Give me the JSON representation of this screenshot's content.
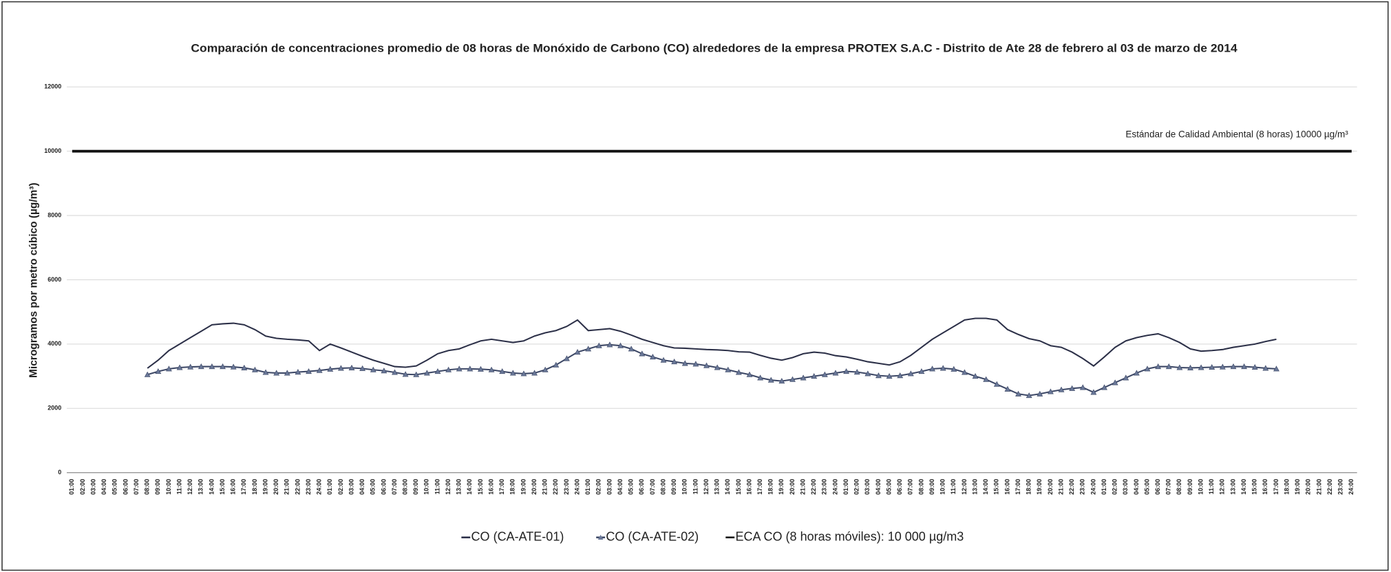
{
  "chart_data": {
    "type": "line",
    "title": "Comparación de concentraciones promedio  de 08 horas de  Monóxido de  Carbono (CO) alrededores de la empresa PROTEX S.A.C -  Distrito de Ate   28 de febrero al 03 de marzo de 2014",
    "y_label": "Microgramos por metro cúbico (µg/m³)",
    "annotation": "Estándar de Calidad  Ambiental (8 horas) 10000 µg/m³",
    "categories": [
      "01:00",
      "02:00",
      "03:00",
      "04:00",
      "05:00",
      "06:00",
      "07:00",
      "08:00",
      "09:00",
      "10:00",
      "11:00",
      "12:00",
      "13:00",
      "14:00",
      "15:00",
      "16:00",
      "17:00",
      "18:00",
      "19:00",
      "20:00",
      "21:00",
      "22:00",
      "23:00",
      "24:00",
      "01:00",
      "02:00",
      "03:00",
      "04:00",
      "05:00",
      "06:00",
      "07:00",
      "08:00",
      "09:00",
      "10:00",
      "11:00",
      "12:00",
      "13:00",
      "14:00",
      "15:00",
      "16:00",
      "17:00",
      "18:00",
      "19:00",
      "20:00",
      "21:00",
      "22:00",
      "23:00",
      "24:00",
      "01:00",
      "02:00",
      "03:00",
      "04:00",
      "05:00",
      "06:00",
      "07:00",
      "08:00",
      "09:00",
      "10:00",
      "11:00",
      "12:00",
      "13:00",
      "14:00",
      "15:00",
      "16:00",
      "17:00",
      "18:00",
      "19:00",
      "20:00",
      "21:00",
      "22:00",
      "23:00",
      "24:00",
      "01:00",
      "02:00",
      "03:00",
      "04:00",
      "05:00",
      "06:00",
      "07:00",
      "08:00",
      "09:00",
      "10:00",
      "11:00",
      "12:00",
      "13:00",
      "14:00",
      "15:00",
      "16:00",
      "17:00",
      "18:00",
      "19:00",
      "20:00",
      "21:00",
      "22:00",
      "23:00",
      "24:00",
      "01:00",
      "02:00",
      "03:00",
      "04:00",
      "05:00",
      "06:00",
      "07:00",
      "08:00",
      "09:00",
      "10:00",
      "11:00",
      "12:00",
      "13:00",
      "14:00",
      "15:00",
      "16:00",
      "17:00",
      "18:00",
      "19:00",
      "20:00",
      "21:00",
      "22:00",
      "23:00",
      "24:00"
    ],
    "series": [
      {
        "name": "CO (CA-ATE-01)",
        "color": "#2c3048",
        "marker": "none",
        "values": [
          null,
          null,
          null,
          null,
          null,
          null,
          null,
          3250,
          3500,
          3800,
          4000,
          4200,
          4400,
          4600,
          4630,
          4650,
          4600,
          4450,
          4250,
          4180,
          4150,
          4130,
          4100,
          3800,
          4000,
          3880,
          3750,
          3620,
          3500,
          3400,
          3300,
          3280,
          3320,
          3500,
          3700,
          3800,
          3850,
          3980,
          4100,
          4150,
          4100,
          4050,
          4100,
          4250,
          4350,
          4420,
          4550,
          4750,
          4420,
          4450,
          4480,
          4400,
          4280,
          4150,
          4050,
          3950,
          3880,
          3870,
          3850,
          3830,
          3820,
          3800,
          3760,
          3750,
          3650,
          3560,
          3500,
          3580,
          3700,
          3750,
          3720,
          3640,
          3600,
          3530,
          3450,
          3400,
          3350,
          3450,
          3650,
          3900,
          4150,
          4350,
          4550,
          4750,
          4800,
          4800,
          4750,
          4450,
          4300,
          4170,
          4100,
          3950,
          3900,
          3750,
          3550,
          3320,
          3600,
          3900,
          4100,
          4200,
          4270,
          4320,
          4200,
          4050,
          3850,
          3780,
          3800,
          3830,
          3900,
          3950,
          4000,
          4080,
          4150,
          null,
          null,
          null,
          null,
          null,
          null,
          null
        ]
      },
      {
        "name": "CO (CA-ATE-02)",
        "color": "#3d4866",
        "marker": "triangle",
        "values": [
          null,
          null,
          null,
          null,
          null,
          null,
          null,
          3050,
          3150,
          3230,
          3270,
          3290,
          3300,
          3300,
          3300,
          3290,
          3260,
          3200,
          3120,
          3100,
          3100,
          3130,
          3150,
          3180,
          3220,
          3250,
          3260,
          3240,
          3200,
          3170,
          3120,
          3060,
          3050,
          3100,
          3150,
          3200,
          3230,
          3230,
          3220,
          3200,
          3150,
          3100,
          3080,
          3100,
          3200,
          3350,
          3550,
          3750,
          3850,
          3950,
          3980,
          3950,
          3850,
          3700,
          3600,
          3500,
          3450,
          3400,
          3380,
          3330,
          3270,
          3200,
          3120,
          3050,
          2950,
          2880,
          2850,
          2900,
          2950,
          3000,
          3050,
          3100,
          3150,
          3130,
          3080,
          3020,
          3000,
          3020,
          3080,
          3150,
          3230,
          3250,
          3220,
          3120,
          3000,
          2900,
          2750,
          2600,
          2450,
          2400,
          2450,
          2520,
          2580,
          2620,
          2650,
          2500,
          2650,
          2800,
          2950,
          3100,
          3230,
          3300,
          3300,
          3270,
          3260,
          3270,
          3280,
          3290,
          3300,
          3300,
          3280,
          3250,
          3230,
          null,
          null,
          null,
          null,
          null,
          null,
          null
        ]
      },
      {
        "name": "ECA CO (8 horas móviles): 10 000 µg/m3",
        "color": "#111111",
        "marker": "none",
        "width": 3,
        "values": [
          10000,
          10000,
          10000,
          10000,
          10000,
          10000,
          10000,
          10000,
          10000,
          10000,
          10000,
          10000,
          10000,
          10000,
          10000,
          10000,
          10000,
          10000,
          10000,
          10000,
          10000,
          10000,
          10000,
          10000,
          10000,
          10000,
          10000,
          10000,
          10000,
          10000,
          10000,
          10000,
          10000,
          10000,
          10000,
          10000,
          10000,
          10000,
          10000,
          10000,
          10000,
          10000,
          10000,
          10000,
          10000,
          10000,
          10000,
          10000,
          10000,
          10000,
          10000,
          10000,
          10000,
          10000,
          10000,
          10000,
          10000,
          10000,
          10000,
          10000,
          10000,
          10000,
          10000,
          10000,
          10000,
          10000,
          10000,
          10000,
          10000,
          10000,
          10000,
          10000,
          10000,
          10000,
          10000,
          10000,
          10000,
          10000,
          10000,
          10000,
          10000,
          10000,
          10000,
          10000,
          10000,
          10000,
          10000,
          10000,
          10000,
          10000,
          10000,
          10000,
          10000,
          10000,
          10000,
          10000,
          10000,
          10000,
          10000,
          10000,
          10000,
          10000,
          10000,
          10000,
          10000,
          10000,
          10000,
          10000,
          10000,
          10000,
          10000,
          10000,
          10000,
          10000,
          10000,
          10000,
          10000,
          10000,
          10000,
          10000
        ]
      }
    ],
    "ylim": [
      0,
      12000
    ],
    "yticks": [
      0,
      2000,
      4000,
      6000,
      8000,
      10000,
      12000
    ],
    "grid": true,
    "legend": "bottom"
  }
}
